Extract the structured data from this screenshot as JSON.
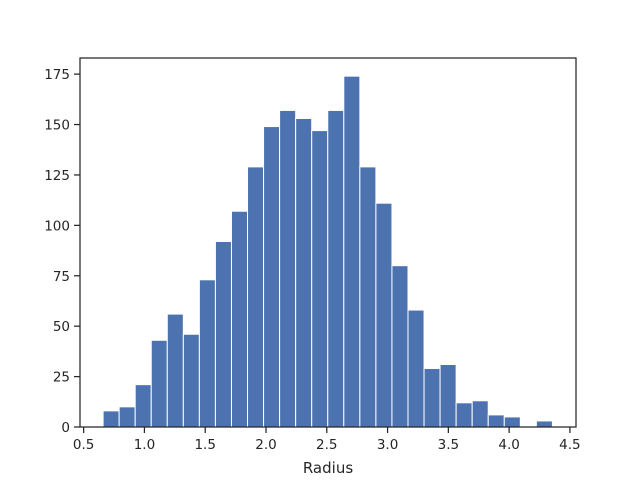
{
  "chart_data": {
    "type": "bar",
    "title": "",
    "xlabel": "Radius",
    "ylabel": "",
    "xlim": [
      0.47,
      4.55
    ],
    "ylim": [
      0,
      183
    ],
    "xticks": [
      "0.5",
      "1.0",
      "1.5",
      "2.0",
      "2.5",
      "3.0",
      "3.5",
      "4.0",
      "4.5"
    ],
    "yticks": [
      "0",
      "25",
      "50",
      "75",
      "100",
      "125",
      "150",
      "175"
    ],
    "bar_color": "#4c72b0",
    "bin_edges": [
      0.66,
      0.792,
      0.924,
      1.056,
      1.188,
      1.32,
      1.452,
      1.584,
      1.716,
      1.848,
      1.98,
      2.112,
      2.244,
      2.376,
      2.508,
      2.64,
      2.772,
      2.904,
      3.036,
      3.168,
      3.3,
      3.432,
      3.564,
      3.696,
      3.828,
      3.96,
      4.092,
      4.224,
      4.356
    ],
    "values": [
      8,
      10,
      21,
      43,
      56,
      46,
      73,
      92,
      107,
      129,
      149,
      157,
      153,
      147,
      157,
      174,
      129,
      111,
      80,
      58,
      29,
      31,
      12,
      13,
      6,
      5,
      0,
      3
    ],
    "grid": false
  }
}
